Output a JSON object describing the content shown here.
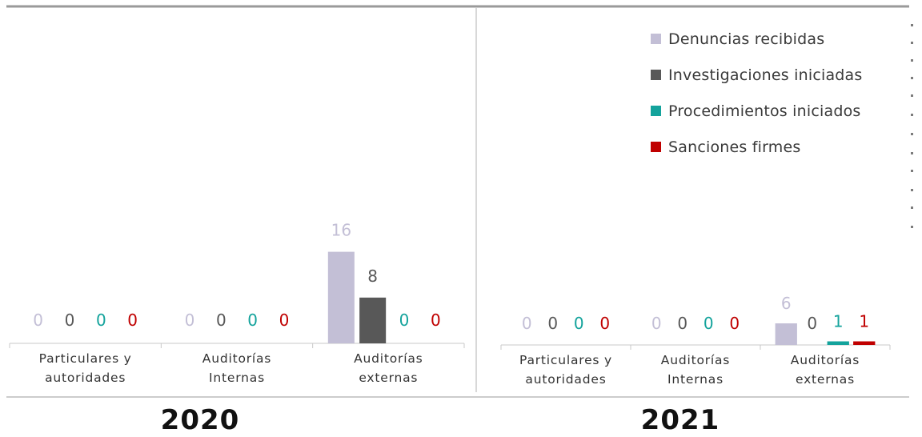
{
  "chart_data": [
    {
      "type": "bar",
      "title": "2020",
      "categories": [
        "Particulares y autoridades",
        "Auditorías Internas",
        "Auditorías externas"
      ],
      "category_lines": [
        [
          "Particulares y",
          "autoridades"
        ],
        [
          "Auditorías",
          "Internas"
        ],
        [
          "Auditorías",
          "externas"
        ]
      ],
      "series": [
        {
          "name": "Denuncias recibidas",
          "values": [
            0,
            0,
            16
          ]
        },
        {
          "name": "Investigaciones iniciadas",
          "values": [
            0,
            0,
            8
          ]
        },
        {
          "name": "Procedimientos iniciados",
          "values": [
            0,
            0,
            0
          ]
        },
        {
          "name": "Sanciones firmes",
          "values": [
            0,
            0,
            0
          ]
        }
      ],
      "data_labels": true
    },
    {
      "type": "bar",
      "title": "2021",
      "categories": [
        "Particulares y autoridades",
        "Auditorías Internas",
        "Auditorías externas"
      ],
      "category_lines": [
        [
          "Particulares y",
          "autoridades"
        ],
        [
          "Auditorías",
          "Internas"
        ],
        [
          "Auditorías",
          "externas"
        ]
      ],
      "series": [
        {
          "name": "Denuncias recibidas",
          "values": [
            0,
            0,
            6
          ]
        },
        {
          "name": "Investigaciones iniciadas",
          "values": [
            0,
            0,
            0
          ]
        },
        {
          "name": "Procedimientos iniciados",
          "values": [
            0,
            0,
            1
          ]
        },
        {
          "name": "Sanciones firmes",
          "values": [
            0,
            0,
            1
          ]
        }
      ],
      "data_labels": true
    }
  ],
  "legend": {
    "placement": "top-right",
    "items": [
      {
        "label": "Denuncias recibidas",
        "color": "#c3bfd6"
      },
      {
        "label": "Investigaciones iniciadas",
        "color": "#585858"
      },
      {
        "label": "Procedimientos iniciados",
        "color": "#14a39c"
      },
      {
        "label": "Sanciones firmes",
        "color": "#c00000"
      }
    ]
  },
  "colors": {
    "Denuncias recibidas": "#c3bfd6",
    "Investigaciones iniciadas": "#585858",
    "Procedimientos iniciados": "#14a39c",
    "Sanciones firmes": "#c00000"
  },
  "years": {
    "left": "2020",
    "right": "2021"
  }
}
